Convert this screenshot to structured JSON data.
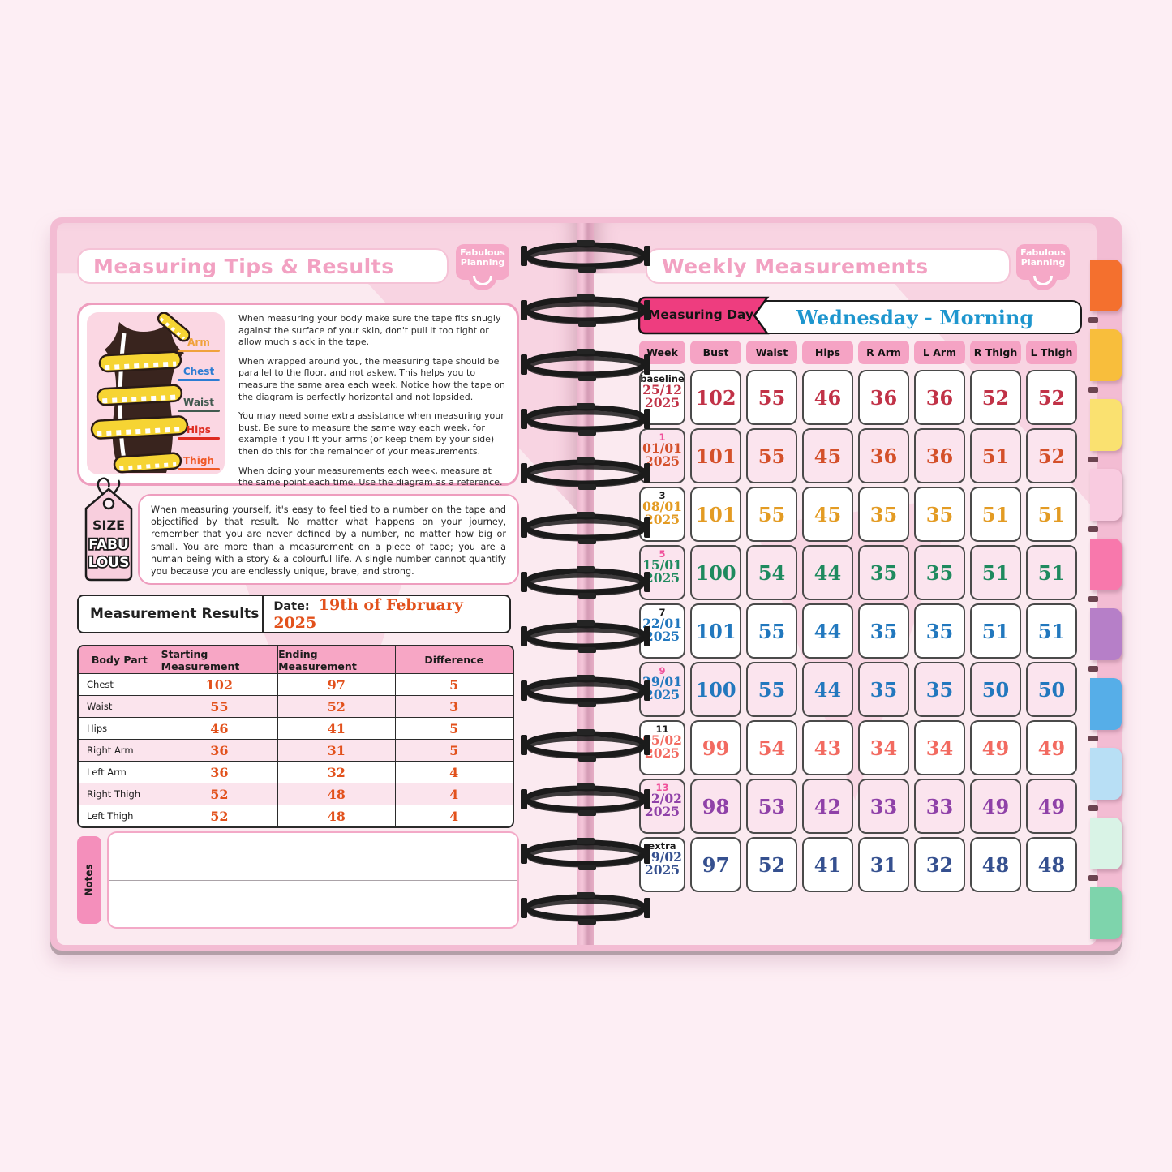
{
  "colors": {
    "background": "#FDEEF4",
    "cover_pink": "#F3BCD3",
    "page_pink": "#F8D4E2",
    "title_pink": "#F2A1C2",
    "banner_pink": "#EE3D7F",
    "chip_pink": "#F5A3C4",
    "value_orange": "#E2511C",
    "day_blue": "#1E96CE",
    "row_shade": "#FBE4EE",
    "week_pink": "#F0519B",
    "week_black": "#1A1A1A"
  },
  "logo": {
    "line1": "Fabulous",
    "line2": "Planning"
  },
  "left_page": {
    "title": "Measuring Tips & Results",
    "diagram": {
      "labels": [
        {
          "label": "Arm",
          "color": "#F0A23C"
        },
        {
          "label": "Chest",
          "color": "#2B7CD3"
        },
        {
          "label": "Waist",
          "color": "#41594F"
        },
        {
          "label": "Hips",
          "color": "#DE2B20"
        },
        {
          "label": "Thigh",
          "color": "#F05A28"
        }
      ]
    },
    "tips_paragraphs": [
      "When measuring your body make sure the tape fits snugly against the surface of your skin, don't pull it too tight or allow much slack in the tape.",
      "When wrapped around you, the measuring tape should be parallel to the floor, and not askew. This helps you to measure the same area each week. Notice how the tape on the diagram is perfectly horizontal and not lopsided.",
      "You may need some extra assistance when measuring your bust. Be sure to measure the same way each week, for example if you lift your arms (or keep them by your side) then do this for the remainder of your measurements.",
      "When doing your measurements each week, measure at the same point each time. Use the diagram as a reference."
    ],
    "size_tag": {
      "line1": "SIZE",
      "line2": "FABU",
      "line3": "LOUS"
    },
    "quote": "When measuring yourself, it's easy to feel tied to a number on the tape and objectified by that result. No matter what happens on your journey, remember that you are never defined by a number, no matter how big or small. You are more than a measurement on a piece of tape; you are a human being with a story & a colourful life. A single number cannot quantify you because you are endlessly unique, brave, and strong.",
    "results": {
      "heading": "Measurement Results",
      "date_label": "Date:",
      "date_value": "19th of February 2025",
      "columns": [
        "Body Part",
        "Starting Measurement",
        "Ending Measurement",
        "Difference"
      ],
      "rows": [
        {
          "part": "Chest",
          "start": "102",
          "end": "97",
          "diff": "5"
        },
        {
          "part": "Waist",
          "start": "55",
          "end": "52",
          "diff": "3"
        },
        {
          "part": "Hips",
          "start": "46",
          "end": "41",
          "diff": "5"
        },
        {
          "part": "Right Arm",
          "start": "36",
          "end": "31",
          "diff": "5"
        },
        {
          "part": "Left Arm",
          "start": "36",
          "end": "32",
          "diff": "4"
        },
        {
          "part": "Right Thigh",
          "start": "52",
          "end": "48",
          "diff": "4"
        },
        {
          "part": "Left Thigh",
          "start": "52",
          "end": "48",
          "diff": "4"
        }
      ]
    },
    "notes_label": "Notes",
    "notes_line_count": 4
  },
  "right_page": {
    "title": "Weekly Measurements",
    "measuring_day_label": "Measuring Day",
    "measuring_day_value": "Wednesday - Morning",
    "columns": [
      "Week",
      "Bust",
      "Waist",
      "Hips",
      "R Arm",
      "L Arm",
      "R Thigh",
      "L Thigh"
    ],
    "rows": [
      {
        "week": "baseline",
        "week_color": "#1A1A1A",
        "date_line1": "25/12",
        "date_line2": "2025",
        "color": "#C13247",
        "shaded": false,
        "values": [
          "102",
          "55",
          "46",
          "36",
          "36",
          "52",
          "52"
        ]
      },
      {
        "week": "1",
        "week_color": "#F0519B",
        "date_line1": "01/01",
        "date_line2": "2025",
        "color": "#D4502A",
        "shaded": true,
        "values": [
          "101",
          "55",
          "45",
          "36",
          "36",
          "51",
          "52"
        ]
      },
      {
        "week": "3",
        "week_color": "#1A1A1A",
        "date_line1": "08/01",
        "date_line2": "2025",
        "color": "#E39B23",
        "shaded": false,
        "values": [
          "101",
          "55",
          "45",
          "35",
          "35",
          "51",
          "51"
        ]
      },
      {
        "week": "5",
        "week_color": "#F0519B",
        "date_line1": "15/01",
        "date_line2": "2025",
        "color": "#1E8A5E",
        "shaded": true,
        "values": [
          "100",
          "54",
          "44",
          "35",
          "35",
          "51",
          "51"
        ]
      },
      {
        "week": "7",
        "week_color": "#1A1A1A",
        "date_line1": "22/01",
        "date_line2": "2025",
        "color": "#2278BE",
        "shaded": false,
        "values": [
          "101",
          "55",
          "44",
          "35",
          "35",
          "51",
          "51"
        ]
      },
      {
        "week": "9",
        "week_color": "#F0519B",
        "date_line1": "29/01",
        "date_line2": "2025",
        "color": "#2278BE",
        "shaded": true,
        "values": [
          "100",
          "55",
          "44",
          "35",
          "35",
          "50",
          "50"
        ]
      },
      {
        "week": "11",
        "week_color": "#1A1A1A",
        "date_line1": "05/02",
        "date_line2": "2025",
        "color": "#F26A60",
        "shaded": false,
        "values": [
          "99",
          "54",
          "43",
          "34",
          "34",
          "49",
          "49"
        ]
      },
      {
        "week": "13",
        "week_color": "#F0519B",
        "date_line1": "12/02",
        "date_line2": "2025",
        "color": "#8F41A8",
        "shaded": true,
        "values": [
          "98",
          "53",
          "42",
          "33",
          "33",
          "49",
          "49"
        ]
      },
      {
        "week": "extra",
        "week_color": "#1A1A1A",
        "date_line1": "19/02",
        "date_line2": "2025",
        "color": "#35508F",
        "shaded": false,
        "values": [
          "97",
          "52",
          "41",
          "31",
          "32",
          "48",
          "48"
        ]
      }
    ]
  },
  "tabs": [
    {
      "color": "#F4702E"
    },
    {
      "color": "#F8BE3C"
    },
    {
      "color": "#FAE170"
    },
    {
      "color": "#F9CBE0"
    },
    {
      "color": "#F878AC"
    },
    {
      "color": "#B67FC8"
    },
    {
      "color": "#56AEE8"
    },
    {
      "color": "#B8DFF5"
    },
    {
      "color": "#D9F3E6"
    },
    {
      "color": "#7ED4AC"
    }
  ],
  "spiral_loop_count": 13
}
